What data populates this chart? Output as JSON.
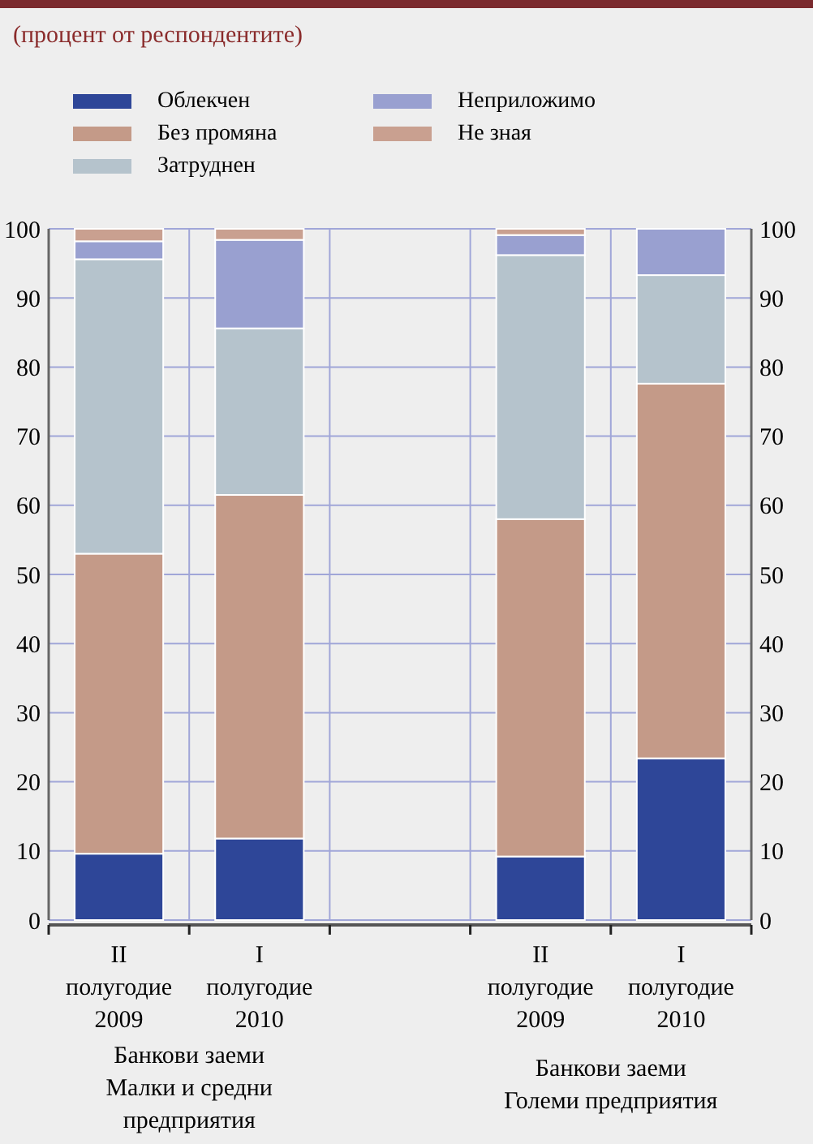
{
  "chart_data": {
    "type": "bar",
    "subtitle": "(процент от респондентите)",
    "categories": [
      "II\nполугодие\n2009",
      "I\nполугодие\n2010",
      null,
      "II\nполугодие\n2009",
      "I\nполугодие\n2010"
    ],
    "stacked": true,
    "series": [
      {
        "name": "Облекчен",
        "color": "#2e4698",
        "values": [
          9.6,
          11.8,
          null,
          9.2,
          23.4
        ]
      },
      {
        "name": "Без промяна",
        "color": "#c49a88",
        "values": [
          43.4,
          49.7,
          null,
          48.8,
          54.2
        ]
      },
      {
        "name": "Затруднен",
        "color": "#b5c3cc",
        "values": [
          42.6,
          24.1,
          null,
          38.2,
          15.7
        ]
      },
      {
        "name": "Неприложимо",
        "color": "#99a0d0",
        "values": [
          2.6,
          12.8,
          null,
          2.9,
          6.7
        ]
      },
      {
        "name": "Не зная",
        "color": "#c9a090",
        "values": [
          1.8,
          1.6,
          null,
          0.9,
          0
        ]
      }
    ],
    "ylim": [
      0,
      100
    ],
    "yticks": [
      0,
      10,
      20,
      30,
      40,
      50,
      60,
      70,
      80,
      90,
      100
    ],
    "y2lim": [
      0,
      100
    ],
    "y2ticks": [
      0,
      10,
      20,
      30,
      40,
      50,
      60,
      70,
      80,
      90,
      100
    ],
    "grid": true,
    "legend": "top",
    "annotations": [
      "Банкови заеми\nМалки и средни\nпредприятия",
      "Банкови заеми\nГолеми предприятия"
    ]
  }
}
